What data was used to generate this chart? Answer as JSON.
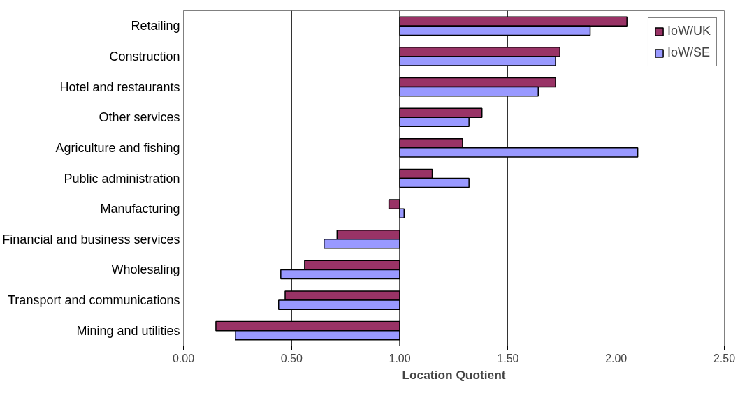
{
  "chart_data": {
    "type": "bar",
    "orientation": "horizontal",
    "xlabel": "Location Quotient",
    "categories": [
      "Retailing",
      "Construction",
      "Hotel and restaurants",
      "Other services",
      "Agriculture and fishing",
      "Public administration",
      "Manufacturing",
      "Financial and business services",
      "Wholesaling",
      "Transport and communications",
      "Mining and utilities"
    ],
    "series": [
      {
        "name": "IoW/UK",
        "color": "#993366",
        "base": [
          1,
          1,
          1,
          1,
          1,
          1,
          1,
          1,
          1,
          1,
          1
        ],
        "values": [
          1.05,
          0.74,
          0.72,
          0.38,
          0.29,
          0.15,
          -0.05,
          -0.29,
          -0.44,
          -0.53,
          -0.85
        ]
      },
      {
        "name": "IoW/SE",
        "color": "#9999ff",
        "base": [
          1,
          1,
          1,
          1,
          1,
          1,
          1,
          1,
          1,
          1,
          1
        ],
        "values": [
          0.88,
          0.72,
          0.64,
          0.32,
          1.1,
          0.32,
          0.02,
          -0.35,
          -0.55,
          -0.56,
          -0.76
        ]
      }
    ],
    "xlim": [
      0,
      2.5
    ],
    "xticks": [
      {
        "value": 0,
        "label": "0.00"
      },
      {
        "value": 0.5,
        "label": "0.50"
      },
      {
        "value": 1,
        "label": "1.00"
      },
      {
        "value": 1.5,
        "label": "1.50"
      },
      {
        "value": 2,
        "label": "2.00"
      },
      {
        "value": 2.5,
        "label": "2.50"
      }
    ],
    "ref_lines": [
      {
        "axis": "x",
        "value": 1,
        "color": "#000000"
      }
    ],
    "grid": "x",
    "legend": "top right",
    "tick_labels": "x"
  }
}
